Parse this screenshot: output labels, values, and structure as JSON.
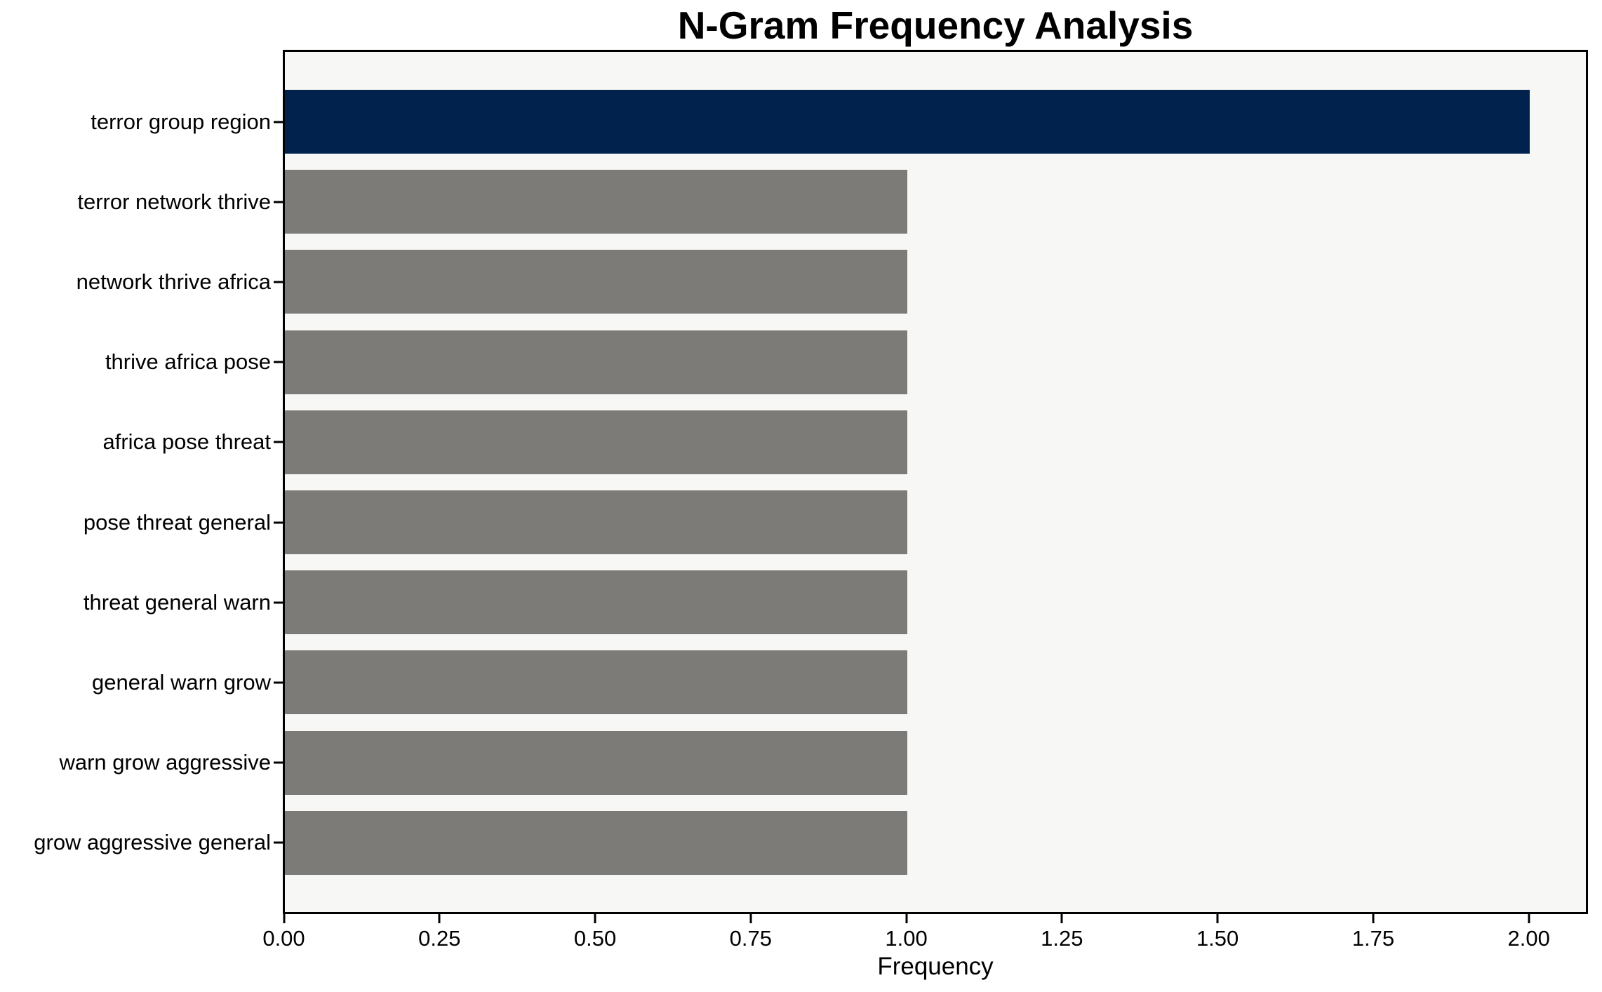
{
  "chart_data": {
    "type": "bar",
    "orientation": "horizontal",
    "title": "N-Gram Frequency Analysis",
    "xlabel": "Frequency",
    "ylabel": "",
    "categories": [
      "terror group region",
      "terror network thrive",
      "network thrive africa",
      "thrive africa pose",
      "africa pose threat",
      "pose threat general",
      "threat general warn",
      "general warn grow",
      "warn grow aggressive",
      "grow aggressive general"
    ],
    "values": [
      2.0,
      1.0,
      1.0,
      1.0,
      1.0,
      1.0,
      1.0,
      1.0,
      1.0,
      1.0
    ],
    "bar_colors": [
      "#00224c",
      "#7c7b77",
      "#7c7b77",
      "#7c7b77",
      "#7c7b77",
      "#7c7b77",
      "#7c7b77",
      "#7c7b77",
      "#7c7b77",
      "#7c7b77"
    ],
    "x_tick_labels": [
      "0.00",
      "0.25",
      "0.50",
      "0.75",
      "1.00",
      "1.25",
      "1.50",
      "1.75",
      "2.00"
    ],
    "x_tick_values": [
      0.0,
      0.25,
      0.5,
      0.75,
      1.0,
      1.25,
      1.5,
      1.75,
      2.0
    ],
    "xlim": [
      0,
      2.09
    ],
    "grid": false,
    "legend": "none",
    "colors": {
      "highlight_bar": "#00224c",
      "default_bar": "#7c7b77",
      "plot_background": "#f7f7f6",
      "figure_background": "#ffffff",
      "spine": "#000000",
      "text": "#000000"
    }
  }
}
